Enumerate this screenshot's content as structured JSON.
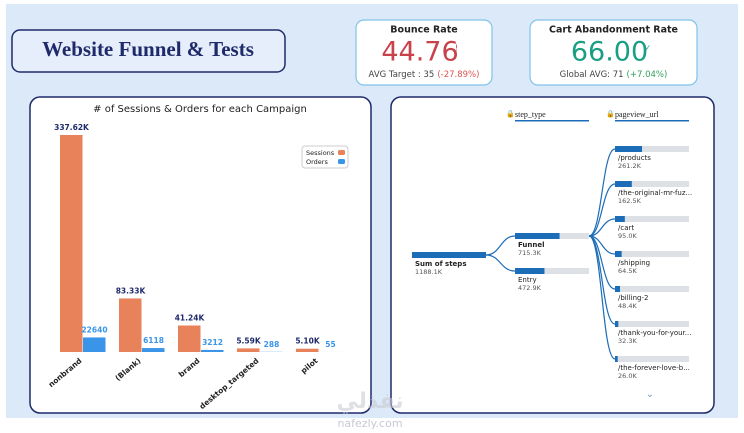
{
  "header": {
    "title": "Website Funnel & Tests"
  },
  "kpis": [
    {
      "title": "Bounce Rate",
      "value": "44.76",
      "icon": "!",
      "target": "AVG Target : 35",
      "change": "(-27.89%)",
      "color": "#c8414b",
      "change_color": "#d9534f"
    },
    {
      "title": "Cart Abandonment Rate",
      "value": "66.00",
      "icon": "✓",
      "target": "Global AVG: 71",
      "change": "(+7.04%)",
      "color": "#1a9e84",
      "change_color": "#2e9e5b"
    }
  ],
  "chart_data": {
    "type": "bar",
    "title": "# of Sessions & Orders for each Campaign",
    "categories": [
      "nonbrand",
      "(Blank)",
      "brand",
      "desktop_targeted",
      "pilot"
    ],
    "series": [
      {
        "name": "Sessions",
        "color": "#e8825a",
        "values": [
          337620,
          83330,
          41240,
          5590,
          5100
        ],
        "value_labels": [
          "337.62K",
          "83.33K",
          "41.24K",
          "5.59K",
          "5.10K"
        ]
      },
      {
        "name": "Orders",
        "color": "#3a95e8",
        "values": [
          22640,
          6118,
          3212,
          288,
          55
        ]
      }
    ],
    "legend": "upper right"
  },
  "tree": {
    "levels": [
      "step_type",
      "pageview_url"
    ],
    "root": {
      "label": "Sum of steps",
      "value": 1188100,
      "value_label": "1188.1K"
    },
    "level1": [
      {
        "label": "Funnel",
        "value": 715300,
        "value_label": "715.3K"
      },
      {
        "label": "Entry",
        "value": 472900,
        "value_label": "472.9K"
      }
    ],
    "level2": [
      {
        "label": "/products",
        "value": 261200,
        "value_label": "261.2K"
      },
      {
        "label": "/the-original-mr-fuz...",
        "value": 162500,
        "value_label": "162.5K"
      },
      {
        "label": "/cart",
        "value": 95000,
        "value_label": "95.0K"
      },
      {
        "label": "/shipping",
        "value": 64500,
        "value_label": "64.5K"
      },
      {
        "label": "/billing-2",
        "value": 48400,
        "value_label": "48.4K"
      },
      {
        "label": "/thank-you-for-your...",
        "value": 32300,
        "value_label": "32.3K"
      },
      {
        "label": "/the-forever-love-b...",
        "value": 26000,
        "value_label": "26.0K"
      }
    ]
  },
  "watermark": {
    "arabic": "نفذلي",
    "site": "nafezly.com"
  }
}
